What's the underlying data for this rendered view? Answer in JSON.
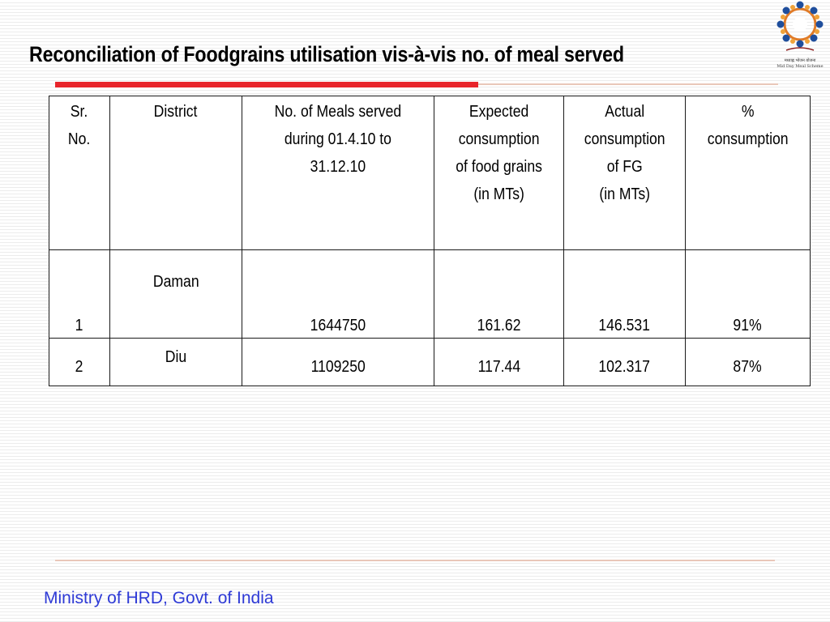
{
  "slide": {
    "title": "Reconciliation of Foodgrains utilisation vis-à-vis no. of meal served",
    "footer": "Ministry of HRD, Govt. of India",
    "accent_color": "#e8242b",
    "footer_color": "#2e3ad6"
  },
  "logo": {
    "caption_line1": "मध्याह्न भोजन योजना",
    "caption_line2": "Mid Day Meal Scheme"
  },
  "table": {
    "headers": {
      "sr_line1": "Sr.",
      "sr_line2": "No.",
      "district": "District",
      "meals_line1": "No. of Meals served",
      "meals_line2": "during 01.4.10 to",
      "meals_line3": "31.12.10",
      "expected_line1": "Expected",
      "expected_line2": "consumption",
      "expected_line3": "of food grains",
      "expected_line4": "(in MTs)",
      "actual_line1": "Actual",
      "actual_line2": "consumption",
      "actual_line3": "of FG",
      "actual_line4": "(in MTs)",
      "pct_line1": "%",
      "pct_line2": "consumption"
    },
    "rows": [
      {
        "sr": "1",
        "district": "Daman",
        "meals": "1644750",
        "expected": "161.62",
        "actual": "146.531",
        "pct": "91%"
      },
      {
        "sr": "2",
        "district": "Diu",
        "meals": "1109250",
        "expected": "117.44",
        "actual": "102.317",
        "pct": "87%"
      }
    ]
  }
}
